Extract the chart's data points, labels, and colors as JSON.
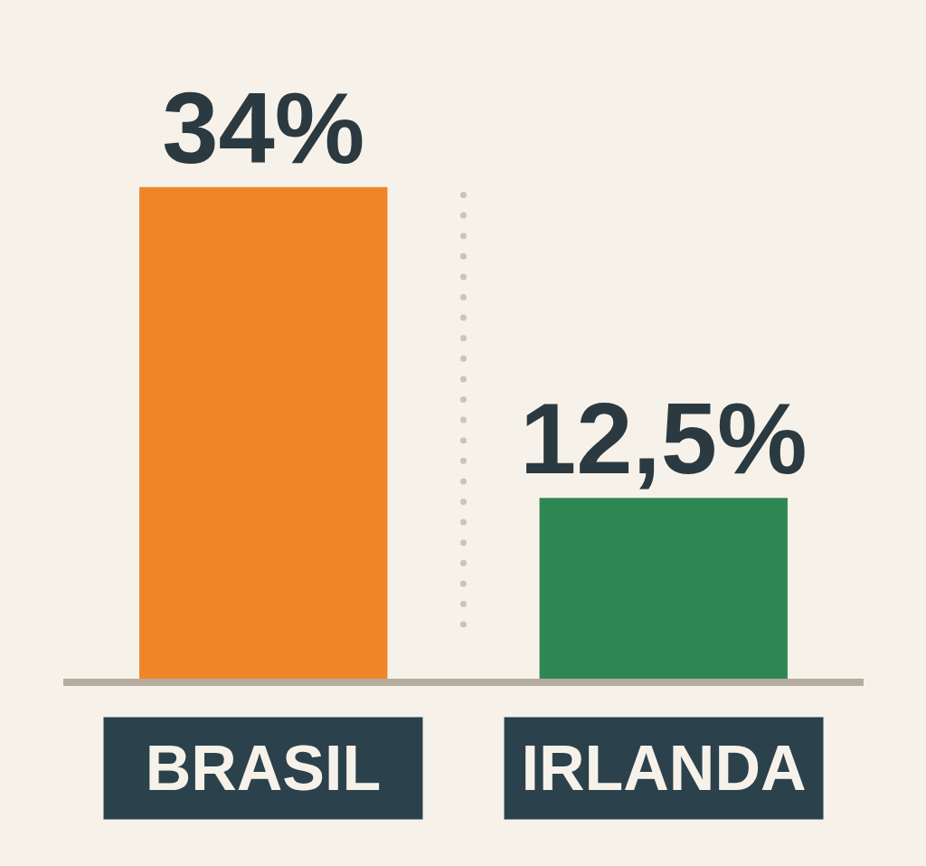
{
  "chart_data": {
    "type": "bar",
    "categories": [
      "BRASIL",
      "IRLANDA"
    ],
    "values": [
      34,
      12.5
    ],
    "colors": [
      "#ef8528",
      "#2e8753"
    ],
    "value_labels": [
      "34%",
      "12,5%"
    ],
    "tick_labels": "x"
  }
}
